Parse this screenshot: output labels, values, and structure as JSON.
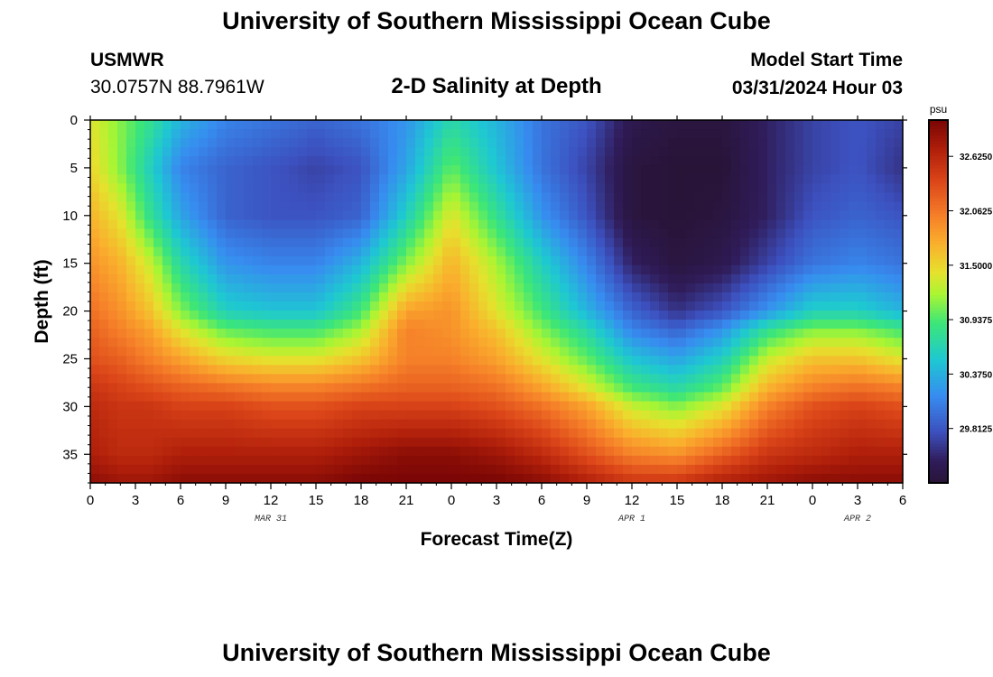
{
  "header": {
    "title": "University of Southern Mississippi Ocean Cube",
    "station": "USMWR",
    "coordinates": "30.0757N  88.7961W",
    "subtitle": "2-D Salinity at Depth",
    "model_start_label": "Model Start Time",
    "model_start_value": "03/31/2024 Hour 03"
  },
  "footer": {
    "title": "University of Southern Mississippi Ocean Cube"
  },
  "chart_data": {
    "type": "heatmap",
    "title": "2-D Salinity at Depth",
    "xlabel": "Forecast Time(Z)",
    "ylabel": "Depth (ft)",
    "x_hours_range": [
      0,
      54
    ],
    "y_range": [
      0,
      38
    ],
    "y_inverted": true,
    "x_tick_labels": [
      "0",
      "3",
      "6",
      "9",
      "12",
      "15",
      "18",
      "21",
      "0",
      "3",
      "6",
      "9",
      "12",
      "15",
      "18",
      "21",
      "0",
      "3",
      "6"
    ],
    "y_tick_values": [
      0,
      5,
      10,
      15,
      20,
      25,
      30,
      35
    ],
    "y_tick_labels": [
      "0",
      "5",
      "10",
      "15",
      "20",
      "25",
      "30",
      "35"
    ],
    "date_labels": [
      {
        "text": "MAR 31",
        "hour": 12
      },
      {
        "text": "APR 1",
        "hour": 36
      },
      {
        "text": "APR 2",
        "hour": 51
      }
    ],
    "colorbar": {
      "unit": "psu",
      "min": 29.25,
      "max": 33.0,
      "tick_values": [
        32.625,
        32.0625,
        31.5,
        30.9375,
        30.375,
        29.8125
      ],
      "tick_labels": [
        "32.6250",
        "32.0625",
        "31.5000",
        "30.9375",
        "30.3750",
        "29.8125"
      ]
    },
    "salinity_grid": {
      "depths": [
        0,
        5,
        10,
        15,
        20,
        22,
        25,
        28,
        30,
        35,
        38
      ],
      "hours": [
        0,
        2,
        4,
        6,
        9,
        12,
        15,
        18,
        21,
        24,
        27,
        30,
        33,
        36,
        39,
        42,
        45,
        48,
        51,
        54
      ],
      "values": [
        [
          31.4,
          31.1,
          30.8,
          30.4,
          30.1,
          30.0,
          29.9,
          30.0,
          30.2,
          30.7,
          30.4,
          30.0,
          29.8,
          29.4,
          29.3,
          29.3,
          29.5,
          29.7,
          29.8,
          29.7
        ],
        [
          31.5,
          31.1,
          30.6,
          30.1,
          29.9,
          29.8,
          29.7,
          29.8,
          30.3,
          31.0,
          30.5,
          30.0,
          29.7,
          29.3,
          29.25,
          29.25,
          29.5,
          29.7,
          29.8,
          29.6
        ],
        [
          31.7,
          31.4,
          30.8,
          30.3,
          29.9,
          29.8,
          29.8,
          29.9,
          30.6,
          31.4,
          30.8,
          30.2,
          29.8,
          29.3,
          29.25,
          29.3,
          29.5,
          29.8,
          29.9,
          29.8
        ],
        [
          31.9,
          31.7,
          31.3,
          30.7,
          30.2,
          30.1,
          30.1,
          30.4,
          31.1,
          31.7,
          31.2,
          30.6,
          30.1,
          29.5,
          29.3,
          29.4,
          29.7,
          30.0,
          30.1,
          30.0
        ],
        [
          32.1,
          31.9,
          31.6,
          31.1,
          30.6,
          30.5,
          30.5,
          30.9,
          31.8,
          31.9,
          31.4,
          30.9,
          30.4,
          29.9,
          29.6,
          29.8,
          30.2,
          30.6,
          30.6,
          30.4
        ],
        [
          32.2,
          32.0,
          31.8,
          31.4,
          31.0,
          30.9,
          30.9,
          31.2,
          32.0,
          31.9,
          31.6,
          31.1,
          30.7,
          30.1,
          29.9,
          30.2,
          30.8,
          31.1,
          31.1,
          30.9
        ],
        [
          32.3,
          32.2,
          32.0,
          31.8,
          31.5,
          31.4,
          31.4,
          31.6,
          32.0,
          32.0,
          31.8,
          31.4,
          31.0,
          30.5,
          30.3,
          30.6,
          31.3,
          31.6,
          31.6,
          31.4
        ],
        [
          32.5,
          32.4,
          32.3,
          32.2,
          32.1,
          32.0,
          32.0,
          32.1,
          32.2,
          32.2,
          32.1,
          31.8,
          31.4,
          30.9,
          30.7,
          31.0,
          31.7,
          32.0,
          32.1,
          32.0
        ],
        [
          32.6,
          32.5,
          32.5,
          32.4,
          32.4,
          32.3,
          32.3,
          32.4,
          32.4,
          32.4,
          32.3,
          32.1,
          31.8,
          31.3,
          31.1,
          31.4,
          32.0,
          32.3,
          32.4,
          32.3
        ],
        [
          32.7,
          32.6,
          32.6,
          32.7,
          32.7,
          32.7,
          32.7,
          32.8,
          32.9,
          32.9,
          32.8,
          32.6,
          32.3,
          32.0,
          31.9,
          32.2,
          32.5,
          32.6,
          32.7,
          32.7
        ],
        [
          32.9,
          32.8,
          32.8,
          32.9,
          32.9,
          32.9,
          32.9,
          33.0,
          33.0,
          33.0,
          33.0,
          32.9,
          32.7,
          32.5,
          32.5,
          32.7,
          32.8,
          32.9,
          32.9,
          32.9
        ]
      ]
    }
  }
}
